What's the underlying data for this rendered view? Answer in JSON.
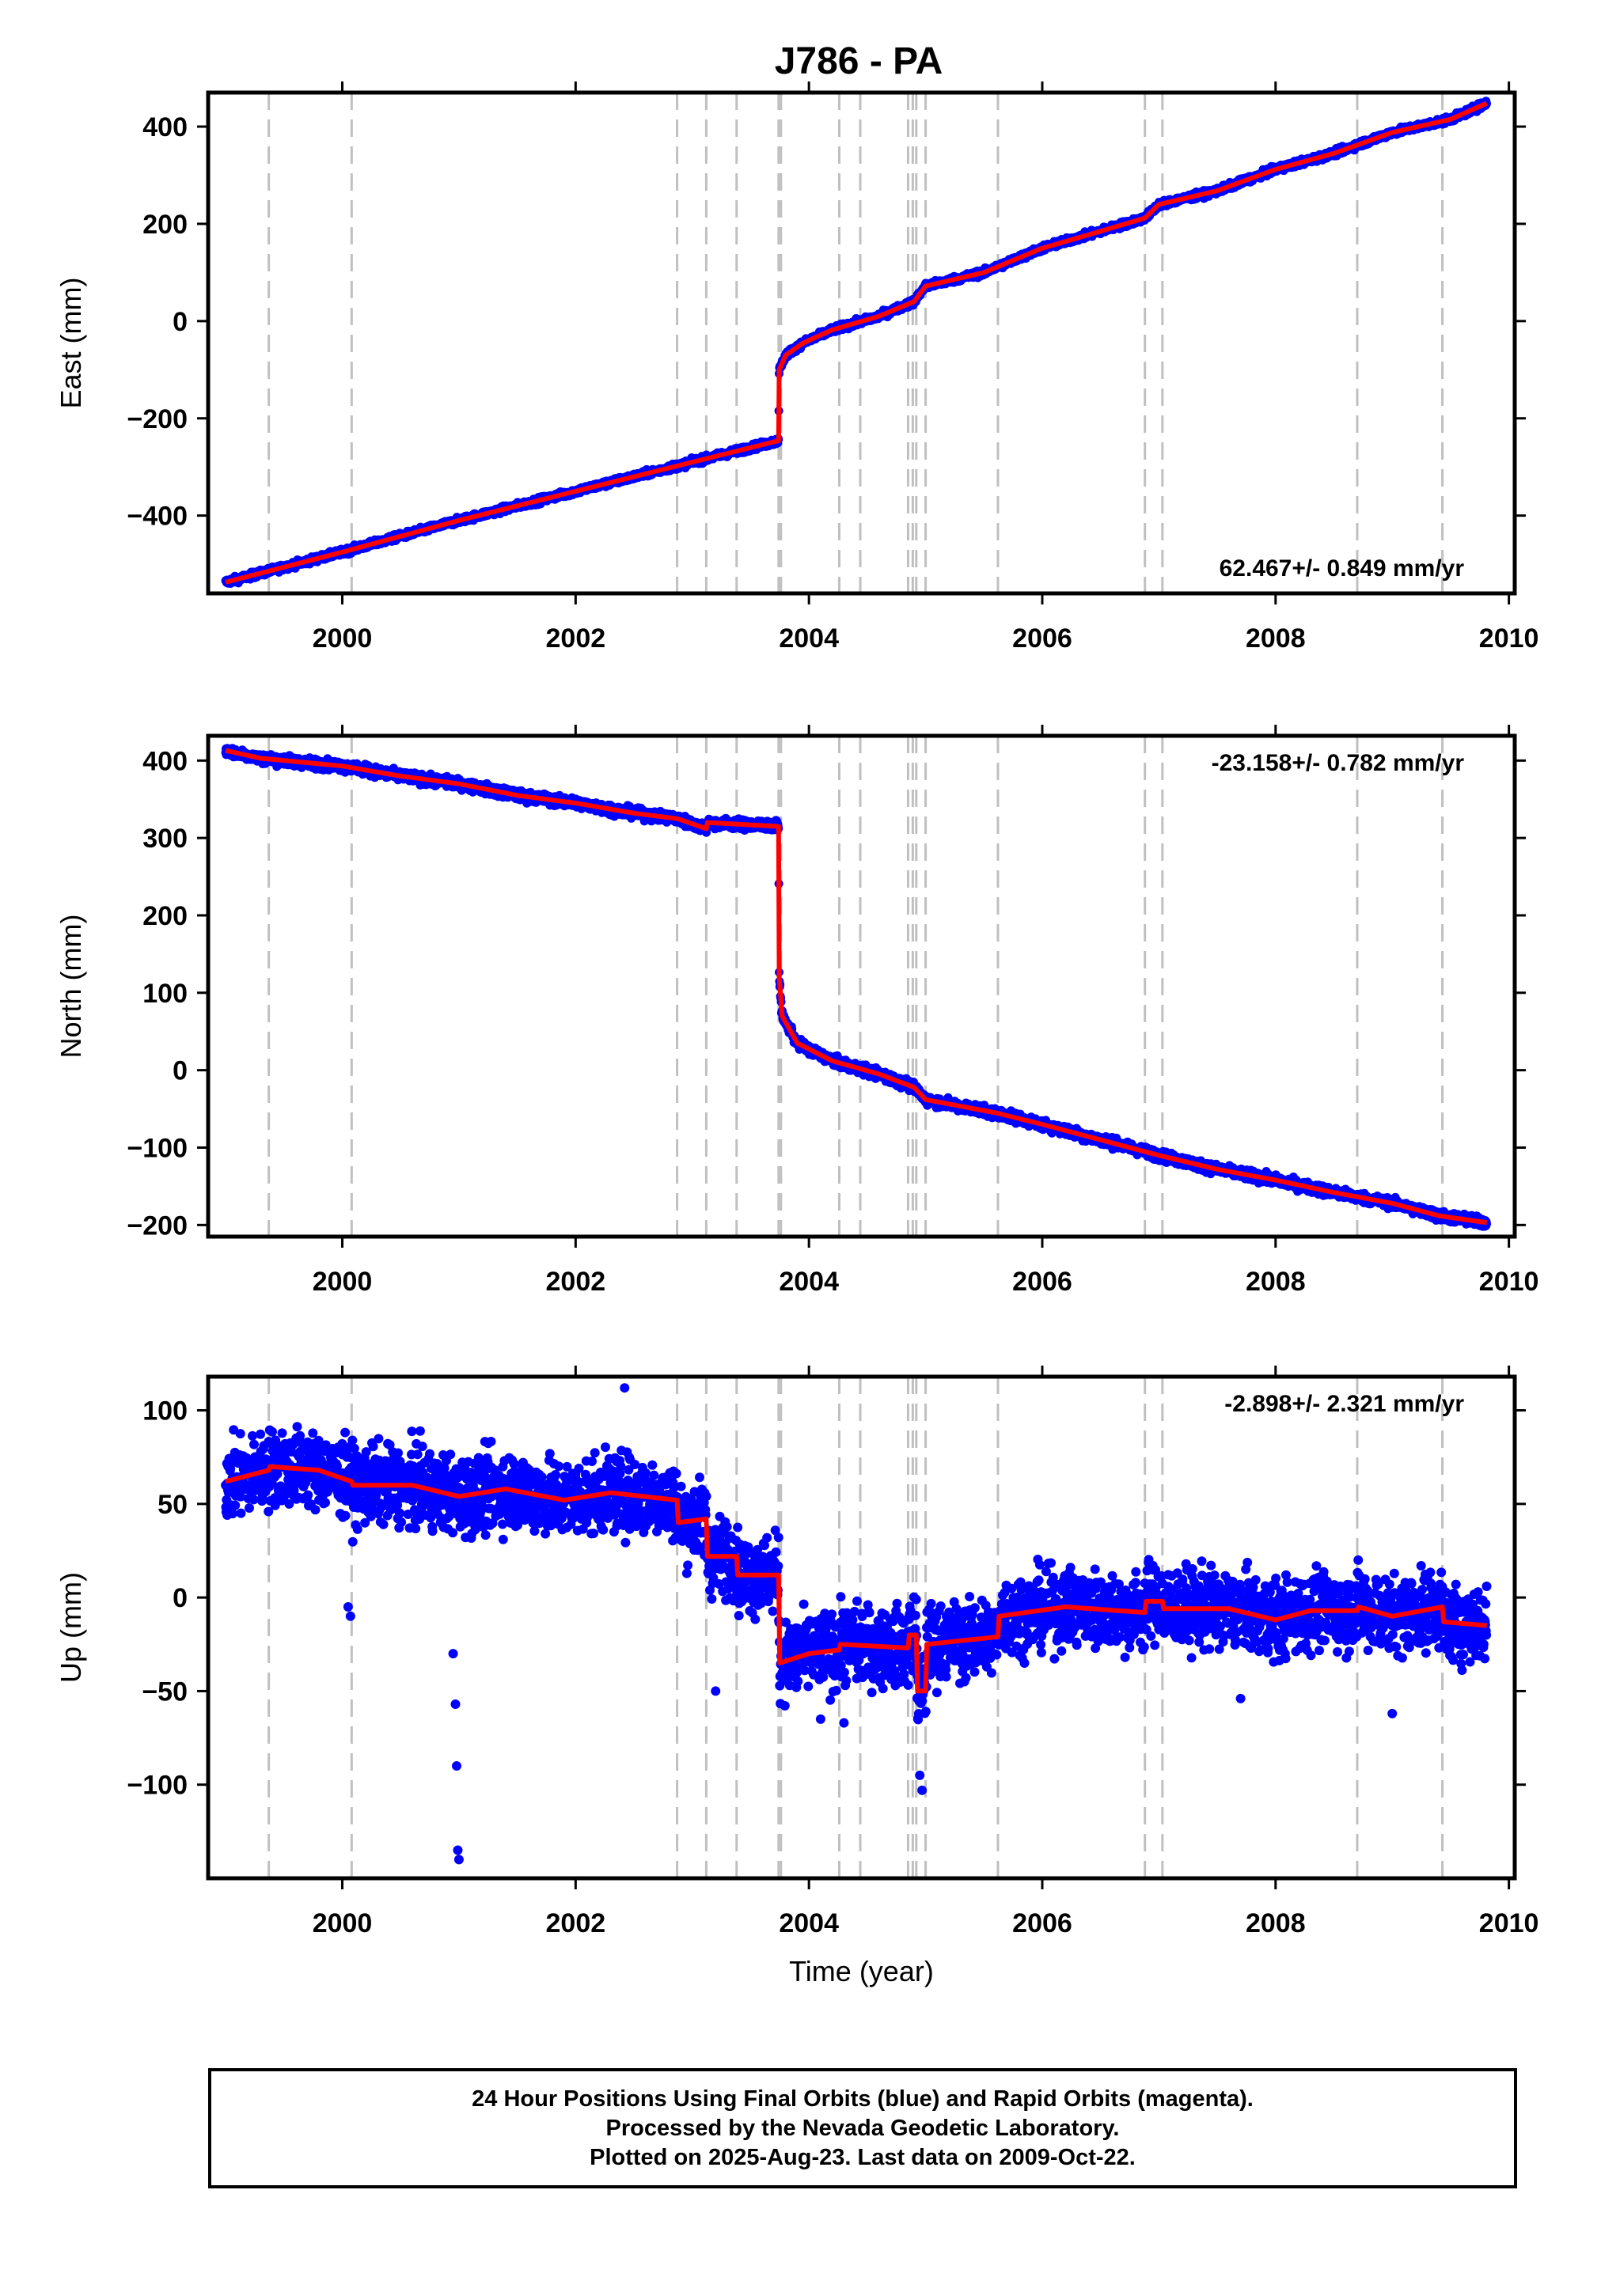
{
  "title": "J786 - PA",
  "footer": {
    "line1": "24 Hour Positions Using Final Orbits (blue) and Rapid Orbits (magenta).",
    "line2": "Processed by the Nevada Geodetic Laboratory.",
    "line3": "Plotted on 2025-Aug-23. Last data on 2009-Oct-22."
  },
  "colors": {
    "final_points": "#0000ff",
    "model_fit": "#ff0000",
    "event_lines": "#c0c0c0"
  },
  "chart_data": [
    {
      "type": "scatter",
      "name": "east",
      "ylabel": "East (mm)",
      "xlabel": "",
      "xlim": [
        1998.85,
        2010.05
      ],
      "ylim": [
        -560,
        470
      ],
      "yticks": [
        -400,
        -200,
        0,
        200,
        400
      ],
      "xticks": [
        2000,
        2002,
        2004,
        2006,
        2008,
        2010
      ],
      "rate_label": "62.467+/- 0.849 mm/yr",
      "rate_position": "bottom-right",
      "event_lines": [
        1999.37,
        2000.08,
        2002.87,
        2003.12,
        2003.38,
        2003.74,
        2003.76,
        2004.26,
        2004.44,
        2004.85,
        2004.89,
        2004.92,
        2005.0,
        2005.62,
        2006.88,
        2007.03,
        2008.7,
        2009.43
      ],
      "fit": [
        {
          "x": 1999.0,
          "y": -537
        },
        {
          "x": 2000.0,
          "y": -475
        },
        {
          "x": 2001.0,
          "y": -410
        },
        {
          "x": 2002.0,
          "y": -350
        },
        {
          "x": 2003.0,
          "y": -290
        },
        {
          "x": 2003.74,
          "y": -246
        },
        {
          "x": 2003.745,
          "y": -100
        },
        {
          "x": 2003.8,
          "y": -70
        },
        {
          "x": 2003.95,
          "y": -45
        },
        {
          "x": 2004.2,
          "y": -18
        },
        {
          "x": 2004.6,
          "y": 10
        },
        {
          "x": 2004.9,
          "y": 40
        },
        {
          "x": 2005.0,
          "y": 72
        },
        {
          "x": 2005.5,
          "y": 100
        },
        {
          "x": 2006.0,
          "y": 150
        },
        {
          "x": 2006.5,
          "y": 185
        },
        {
          "x": 2006.88,
          "y": 212
        },
        {
          "x": 2007.0,
          "y": 240
        },
        {
          "x": 2007.5,
          "y": 268
        },
        {
          "x": 2008.0,
          "y": 312
        },
        {
          "x": 2008.5,
          "y": 345
        },
        {
          "x": 2009.0,
          "y": 388
        },
        {
          "x": 2009.5,
          "y": 415
        },
        {
          "x": 2009.81,
          "y": 448
        }
      ]
    },
    {
      "type": "scatter",
      "name": "north",
      "ylabel": "North (mm)",
      "xlabel": "",
      "xlim": [
        1998.85,
        2010.05
      ],
      "ylim": [
        -215,
        432
      ],
      "yticks": [
        -200,
        -100,
        0,
        100,
        200,
        300,
        400
      ],
      "xticks": [
        2000,
        2002,
        2004,
        2006,
        2008,
        2010
      ],
      "rate_label": "-23.158+/- 0.782 mm/yr",
      "rate_position": "top-right",
      "event_lines": [
        1999.37,
        2000.08,
        2002.87,
        2003.12,
        2003.38,
        2003.74,
        2003.76,
        2004.26,
        2004.44,
        2004.85,
        2004.89,
        2004.92,
        2005.0,
        2005.62,
        2006.88,
        2007.03,
        2008.7,
        2009.43
      ],
      "fit": [
        {
          "x": 1999.0,
          "y": 413
        },
        {
          "x": 1999.3,
          "y": 403
        },
        {
          "x": 2000.0,
          "y": 393
        },
        {
          "x": 2000.5,
          "y": 380
        },
        {
          "x": 2001.0,
          "y": 370
        },
        {
          "x": 2001.5,
          "y": 355
        },
        {
          "x": 2002.0,
          "y": 345
        },
        {
          "x": 2002.5,
          "y": 332
        },
        {
          "x": 2002.87,
          "y": 325
        },
        {
          "x": 2003.12,
          "y": 312
        },
        {
          "x": 2003.13,
          "y": 320
        },
        {
          "x": 2003.74,
          "y": 315
        },
        {
          "x": 2003.745,
          "y": 120
        },
        {
          "x": 2003.77,
          "y": 70
        },
        {
          "x": 2003.9,
          "y": 35
        },
        {
          "x": 2004.2,
          "y": 12
        },
        {
          "x": 2004.6,
          "y": -5
        },
        {
          "x": 2004.9,
          "y": -22
        },
        {
          "x": 2005.0,
          "y": -38
        },
        {
          "x": 2005.6,
          "y": -55
        },
        {
          "x": 2006.0,
          "y": -70
        },
        {
          "x": 2006.5,
          "y": -90
        },
        {
          "x": 2007.0,
          "y": -110
        },
        {
          "x": 2007.5,
          "y": -128
        },
        {
          "x": 2008.0,
          "y": -142
        },
        {
          "x": 2008.5,
          "y": -158
        },
        {
          "x": 2009.0,
          "y": -172
        },
        {
          "x": 2009.4,
          "y": -188
        },
        {
          "x": 2009.81,
          "y": -197
        }
      ]
    },
    {
      "type": "scatter",
      "name": "up",
      "ylabel": "Up (mm)",
      "xlabel": "Time (year)",
      "xlim": [
        1998.85,
        2010.05
      ],
      "ylim": [
        -150,
        118
      ],
      "yticks": [
        -100,
        -50,
        0,
        50,
        100
      ],
      "xticks": [
        2000,
        2002,
        2004,
        2006,
        2008,
        2010
      ],
      "rate_label": "-2.898+/- 2.321 mm/yr",
      "rate_position": "top-right",
      "event_lines": [
        1999.37,
        2000.08,
        2002.87,
        2003.12,
        2003.38,
        2003.74,
        2003.76,
        2004.26,
        2004.44,
        2004.85,
        2004.89,
        2004.92,
        2005.0,
        2005.62,
        2006.88,
        2007.03,
        2008.7,
        2009.43
      ],
      "fit": [
        {
          "x": 1999.0,
          "y": 62
        },
        {
          "x": 1999.37,
          "y": 68
        },
        {
          "x": 1999.38,
          "y": 70
        },
        {
          "x": 1999.8,
          "y": 68
        },
        {
          "x": 2000.08,
          "y": 62
        },
        {
          "x": 2000.09,
          "y": 60
        },
        {
          "x": 2000.6,
          "y": 60
        },
        {
          "x": 2001.0,
          "y": 54
        },
        {
          "x": 2001.4,
          "y": 58
        },
        {
          "x": 2001.9,
          "y": 52
        },
        {
          "x": 2002.3,
          "y": 56
        },
        {
          "x": 2002.87,
          "y": 52
        },
        {
          "x": 2002.88,
          "y": 40
        },
        {
          "x": 2003.12,
          "y": 42
        },
        {
          "x": 2003.13,
          "y": 22
        },
        {
          "x": 2003.38,
          "y": 22
        },
        {
          "x": 2003.39,
          "y": 12
        },
        {
          "x": 2003.74,
          "y": 12
        },
        {
          "x": 2003.75,
          "y": -35
        },
        {
          "x": 2004.0,
          "y": -30
        },
        {
          "x": 2004.26,
          "y": -28
        },
        {
          "x": 2004.27,
          "y": -25
        },
        {
          "x": 2004.85,
          "y": -27
        },
        {
          "x": 2004.86,
          "y": -20
        },
        {
          "x": 2004.92,
          "y": -20
        },
        {
          "x": 2004.93,
          "y": -50
        },
        {
          "x": 2005.0,
          "y": -50
        },
        {
          "x": 2005.01,
          "y": -25
        },
        {
          "x": 2005.62,
          "y": -21
        },
        {
          "x": 2005.63,
          "y": -10
        },
        {
          "x": 2006.2,
          "y": -5
        },
        {
          "x": 2006.88,
          "y": -8
        },
        {
          "x": 2006.89,
          "y": -2
        },
        {
          "x": 2007.03,
          "y": -2
        },
        {
          "x": 2007.04,
          "y": -6
        },
        {
          "x": 2007.6,
          "y": -6
        },
        {
          "x": 2008.0,
          "y": -12
        },
        {
          "x": 2008.3,
          "y": -7
        },
        {
          "x": 2008.7,
          "y": -7
        },
        {
          "x": 2008.71,
          "y": -5
        },
        {
          "x": 2009.0,
          "y": -10
        },
        {
          "x": 2009.43,
          "y": -5
        },
        {
          "x": 2009.44,
          "y": -13
        },
        {
          "x": 2009.81,
          "y": -15
        }
      ],
      "outliers": [
        {
          "x": 2000.05,
          "y": -5
        },
        {
          "x": 2000.07,
          "y": -10
        },
        {
          "x": 2000.95,
          "y": -30
        },
        {
          "x": 2000.97,
          "y": -57
        },
        {
          "x": 2000.98,
          "y": -90
        },
        {
          "x": 2000.99,
          "y": -135
        },
        {
          "x": 2001.0,
          "y": -140
        },
        {
          "x": 2002.42,
          "y": 112
        },
        {
          "x": 2003.2,
          "y": -50
        },
        {
          "x": 2004.1,
          "y": -65
        },
        {
          "x": 2004.3,
          "y": -67
        },
        {
          "x": 2004.95,
          "y": -95
        },
        {
          "x": 2004.97,
          "y": -103
        },
        {
          "x": 2007.7,
          "y": -54
        },
        {
          "x": 2009.0,
          "y": -62
        }
      ]
    }
  ]
}
